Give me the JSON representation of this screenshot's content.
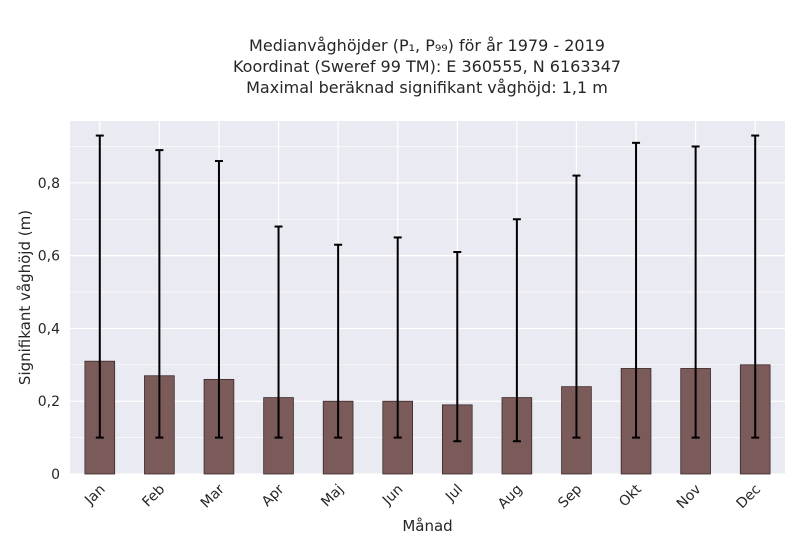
{
  "chart_data": {
    "type": "bar",
    "title_lines": [
      "Medianvåghöjder (P₁, P₉₉) för år 1979 - 2019",
      "Koordinat (Sweref 99 TM): E 360555, N 6163347",
      "Maximal beräknad signifikant våghöjd: 1,1 m"
    ],
    "xlabel": "Månad",
    "ylabel": "Signifikant våghöjd (m)",
    "categories": [
      "Jan",
      "Feb",
      "Mar",
      "Apr",
      "Maj",
      "Jun",
      "Jul",
      "Aug",
      "Sep",
      "Okt",
      "Nov",
      "Dec"
    ],
    "values": [
      0.31,
      0.27,
      0.26,
      0.21,
      0.2,
      0.2,
      0.19,
      0.21,
      0.24,
      0.29,
      0.29,
      0.3
    ],
    "error_low": [
      0.1,
      0.1,
      0.1,
      0.1,
      0.1,
      0.1,
      0.09,
      0.09,
      0.1,
      0.1,
      0.1,
      0.1
    ],
    "error_high": [
      0.93,
      0.89,
      0.86,
      0.68,
      0.63,
      0.65,
      0.61,
      0.7,
      0.82,
      0.91,
      0.9,
      0.93
    ],
    "ylim": [
      0,
      0.97
    ],
    "yticks": [
      0,
      0.2,
      0.4,
      0.6,
      0.8
    ],
    "ytick_labels": [
      "0",
      "0,2",
      "0,4",
      "0,6",
      "0,8"
    ],
    "grid": true,
    "colors": {
      "bar": "#7b5a5a",
      "bar_edge": "#3a2a2a",
      "error_bar": "#000000",
      "plot_background": "#eaeaf2",
      "grid": "#ffffff"
    }
  }
}
